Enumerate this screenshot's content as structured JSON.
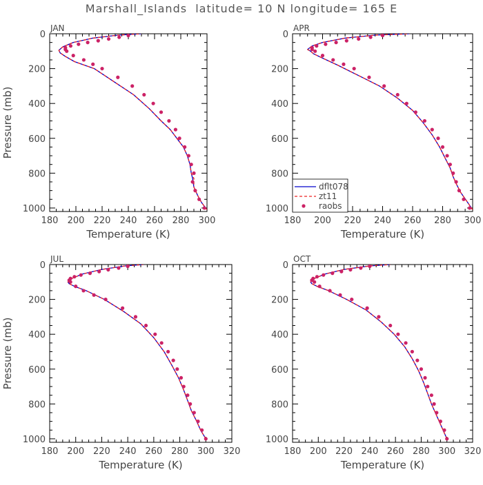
{
  "title": "Marshall_Islands  latitude= 10 N longitude= 165 E",
  "legend": {
    "items": [
      {
        "label": "dflt078",
        "color": "#0000cc",
        "style": "solid"
      },
      {
        "label": "zt11",
        "color": "#ee2222",
        "style": "dashed"
      },
      {
        "label": "raobs",
        "color": "#cc2266",
        "style": "dots"
      }
    ]
  },
  "chart_data": [
    {
      "type": "line",
      "panel_label": "JAN",
      "xlabel": "Temperature (K)",
      "ylabel": "Pressure (mb)",
      "xlim": [
        180,
        300
      ],
      "ylim": [
        0,
        1020
      ],
      "y_inverted": true,
      "xticks": [
        180,
        200,
        220,
        240,
        260,
        280,
        300
      ],
      "yticks": [
        0,
        200,
        400,
        600,
        800,
        1000
      ],
      "legend": false,
      "series": [
        {
          "name": "dflt078",
          "style": "solid",
          "color": "#0000cc",
          "x": [
            300,
            296,
            293,
            290,
            289,
            288,
            287,
            285,
            282,
            277,
            272,
            265,
            256,
            244,
            230,
            214,
            199,
            192,
            188,
            187,
            190,
            198,
            213,
            232,
            250
          ],
          "y": [
            1010,
            970,
            930,
            880,
            830,
            800,
            750,
            700,
            650,
            600,
            550,
            500,
            430,
            350,
            280,
            200,
            160,
            130,
            110,
            95,
            75,
            50,
            25,
            8,
            0
          ]
        },
        {
          "name": "zt11",
          "style": "dashed",
          "color": "#ee2222",
          "x": [
            300,
            296,
            293,
            290,
            290,
            288,
            287,
            285,
            282,
            277,
            272,
            265,
            256,
            244,
            230,
            214,
            199,
            192,
            188,
            187,
            190,
            198,
            213,
            232,
            250
          ],
          "y": [
            1010,
            970,
            930,
            880,
            830,
            800,
            750,
            700,
            650,
            600,
            550,
            500,
            430,
            350,
            280,
            200,
            160,
            130,
            110,
            95,
            75,
            50,
            25,
            8,
            0
          ]
        },
        {
          "name": "raobs",
          "style": "dots",
          "color": "#cc2266",
          "x": [
            298,
            294,
            291,
            289,
            290,
            288,
            286,
            283,
            279,
            276,
            271,
            265,
            259,
            252,
            243,
            232,
            220,
            213,
            206,
            198,
            193,
            192,
            192,
            196,
            202,
            209,
            217,
            225,
            233,
            240
          ],
          "y": [
            1000,
            950,
            900,
            850,
            800,
            750,
            700,
            650,
            600,
            550,
            500,
            450,
            400,
            350,
            300,
            250,
            200,
            175,
            150,
            125,
            100,
            90,
            80,
            70,
            60,
            50,
            40,
            30,
            20,
            10
          ]
        }
      ]
    },
    {
      "type": "line",
      "panel_label": "APR",
      "xlabel": "Temperature (K)",
      "ylabel": "",
      "xlim": [
        180,
        300
      ],
      "ylim": [
        0,
        1020
      ],
      "y_inverted": true,
      "xticks": [
        180,
        200,
        220,
        240,
        260,
        280,
        300
      ],
      "yticks": [
        0,
        200,
        400,
        600,
        800,
        1000
      ],
      "legend": true,
      "series": [
        {
          "name": "dflt078",
          "style": "solid",
          "color": "#0000cc",
          "x": [
            300,
            296,
            292,
            289,
            287,
            285,
            282,
            278,
            273,
            267,
            260,
            250,
            238,
            224,
            210,
            200,
            194,
            192,
            190,
            193,
            200,
            215,
            235,
            258
          ],
          "y": [
            1010,
            960,
            910,
            860,
            820,
            770,
            720,
            650,
            580,
            510,
            440,
            370,
            300,
            240,
            180,
            140,
            115,
            100,
            90,
            70,
            50,
            25,
            8,
            0
          ]
        },
        {
          "name": "zt11",
          "style": "dashed",
          "color": "#ee2222",
          "x": [
            300,
            296,
            292,
            289,
            287,
            285,
            282,
            278,
            273,
            267,
            260,
            250,
            238,
            224,
            210,
            200,
            194,
            192,
            190,
            193,
            200,
            215,
            235,
            258
          ],
          "y": [
            1010,
            960,
            910,
            860,
            820,
            770,
            720,
            650,
            580,
            510,
            440,
            370,
            300,
            240,
            180,
            140,
            115,
            100,
            90,
            70,
            50,
            25,
            8,
            0
          ]
        },
        {
          "name": "raobs",
          "style": "dots",
          "color": "#cc2266",
          "x": [
            298,
            294,
            291,
            289,
            287,
            285,
            283,
            280,
            277,
            273,
            268,
            262,
            256,
            250,
            241,
            231,
            221,
            214,
            207,
            200,
            195,
            193,
            193,
            196,
            202,
            209,
            216,
            224,
            232,
            240
          ],
          "y": [
            1000,
            950,
            900,
            850,
            800,
            750,
            700,
            650,
            600,
            550,
            500,
            450,
            400,
            350,
            300,
            250,
            200,
            175,
            150,
            125,
            100,
            90,
            80,
            70,
            60,
            50,
            40,
            30,
            20,
            10
          ]
        }
      ]
    },
    {
      "type": "line",
      "panel_label": "JUL",
      "xlabel": "Temperature (K)",
      "ylabel": "Pressure (mb)",
      "xlim": [
        180,
        320
      ],
      "ylim": [
        0,
        1020
      ],
      "y_inverted": true,
      "xticks": [
        180,
        200,
        220,
        240,
        260,
        280,
        300,
        320
      ],
      "yticks": [
        0,
        200,
        400,
        600,
        800,
        1000
      ],
      "legend": false,
      "series": [
        {
          "name": "dflt078",
          "style": "solid",
          "color": "#0000cc",
          "x": [
            300,
            296,
            293,
            289,
            286,
            283,
            279,
            274,
            268,
            260,
            250,
            237,
            222,
            208,
            199,
            195,
            194,
            197,
            205,
            220,
            238,
            252
          ],
          "y": [
            1000,
            950,
            900,
            840,
            780,
            720,
            650,
            580,
            500,
            420,
            340,
            270,
            200,
            150,
            125,
            110,
            100,
            80,
            55,
            28,
            8,
            0
          ]
        },
        {
          "name": "zt11",
          "style": "dashed",
          "color": "#ee2222",
          "x": [
            300,
            296,
            293,
            289,
            286,
            283,
            279,
            274,
            268,
            260,
            250,
            237,
            222,
            208,
            199,
            195,
            194,
            197,
            205,
            220,
            238,
            252
          ],
          "y": [
            1000,
            950,
            900,
            840,
            780,
            720,
            650,
            580,
            500,
            420,
            340,
            270,
            200,
            150,
            125,
            110,
            100,
            80,
            55,
            28,
            8,
            0
          ]
        },
        {
          "name": "raobs",
          "style": "dots",
          "color": "#cc2266",
          "x": [
            300,
            297,
            294,
            291,
            288,
            286,
            283,
            281,
            278,
            275,
            271,
            266,
            261,
            254,
            246,
            236,
            223,
            214,
            206,
            200,
            196,
            195,
            196,
            199,
            204,
            211,
            218,
            225,
            233,
            240
          ],
          "y": [
            1000,
            950,
            900,
            850,
            800,
            750,
            700,
            650,
            600,
            550,
            500,
            450,
            400,
            350,
            300,
            250,
            200,
            175,
            150,
            125,
            100,
            90,
            80,
            70,
            60,
            50,
            40,
            30,
            20,
            10
          ]
        }
      ]
    },
    {
      "type": "line",
      "panel_label": "OCT",
      "xlabel": "Temperature (K)",
      "ylabel": "",
      "xlim": [
        180,
        320
      ],
      "ylim": [
        0,
        1020
      ],
      "y_inverted": true,
      "xticks": [
        180,
        200,
        220,
        240,
        260,
        280,
        300,
        320
      ],
      "yticks": [
        0,
        200,
        400,
        600,
        800,
        1000
      ],
      "legend": false,
      "series": [
        {
          "name": "dflt078",
          "style": "solid",
          "color": "#0000cc",
          "x": [
            300,
            297,
            294,
            291,
            288,
            285,
            282,
            278,
            273,
            267,
            259,
            249,
            237,
            222,
            208,
            199,
            195,
            194,
            197,
            205,
            220,
            240,
            256
          ],
          "y": [
            1000,
            950,
            900,
            850,
            800,
            740,
            680,
            610,
            540,
            470,
            400,
            330,
            260,
            200,
            150,
            125,
            110,
            100,
            80,
            55,
            28,
            8,
            0
          ]
        },
        {
          "name": "zt11",
          "style": "dashed",
          "color": "#ee2222",
          "x": [
            300,
            297,
            294,
            291,
            288,
            285,
            282,
            278,
            273,
            267,
            259,
            249,
            237,
            222,
            208,
            199,
            195,
            194,
            197,
            205,
            220,
            240,
            256
          ],
          "y": [
            1000,
            950,
            900,
            850,
            800,
            740,
            680,
            610,
            540,
            470,
            400,
            330,
            260,
            200,
            150,
            125,
            110,
            100,
            80,
            55,
            28,
            8,
            0
          ]
        },
        {
          "name": "raobs",
          "style": "dots",
          "color": "#cc2266",
          "x": [
            300,
            298,
            295,
            292,
            290,
            288,
            285,
            283,
            280,
            277,
            273,
            268,
            262,
            256,
            247,
            238,
            226,
            217,
            209,
            201,
            197,
            195,
            196,
            199,
            204,
            211,
            218,
            225,
            233,
            240
          ],
          "y": [
            1000,
            950,
            900,
            850,
            800,
            750,
            700,
            650,
            600,
            550,
            500,
            450,
            400,
            350,
            300,
            250,
            200,
            175,
            150,
            125,
            100,
            90,
            80,
            70,
            60,
            50,
            40,
            30,
            20,
            10
          ]
        }
      ]
    }
  ]
}
